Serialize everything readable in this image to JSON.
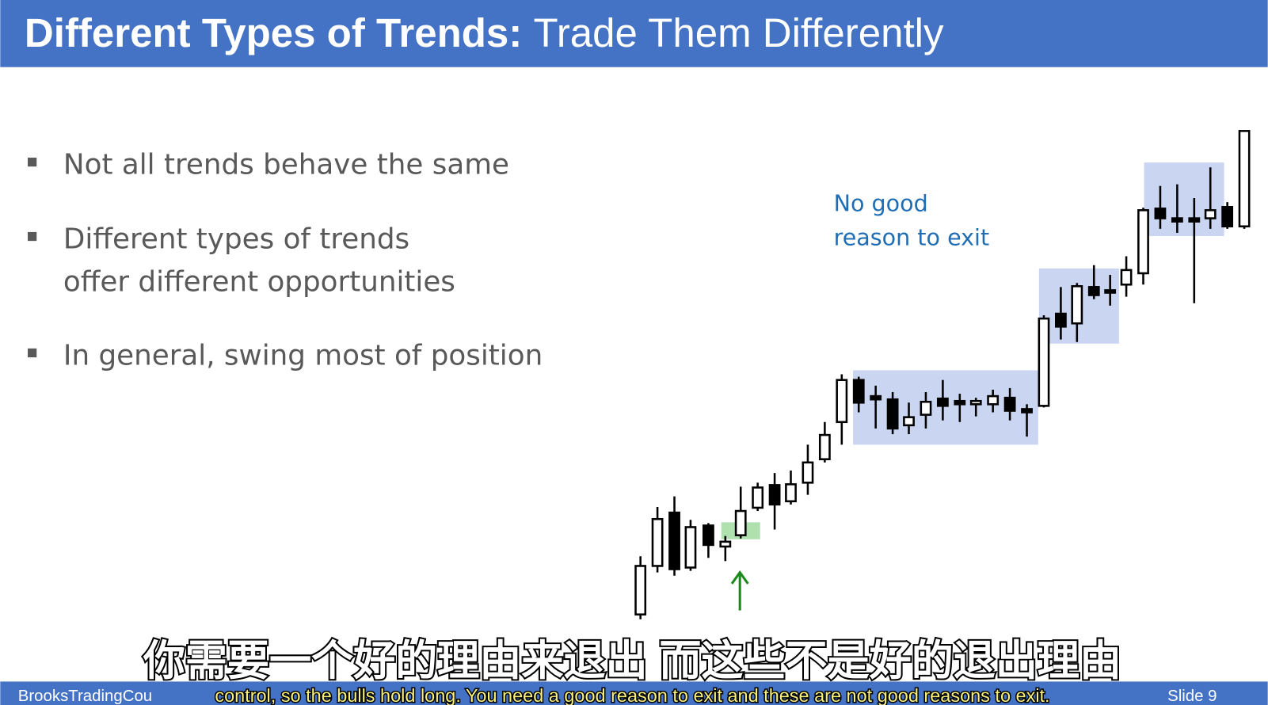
{
  "header": {
    "title_bold": "Different Types of Trends:",
    "title_rest": "Trade Them Differently"
  },
  "bullets": [
    {
      "lines": [
        "Not all trends behave the same"
      ]
    },
    {
      "lines": [
        "Different types of trends",
        "offer different opportunities"
      ]
    },
    {
      "lines": [
        "In general, swing most of position"
      ]
    }
  ],
  "annotation": {
    "lines": [
      "No good",
      "reason to exit"
    ]
  },
  "subtitles": {
    "chinese": "你需要一个好的理由来退出 而这些不是好的退出理由",
    "english": "control, so the bulls hold long. You need a good reason to exit and these are not good reasons to exit."
  },
  "footer": {
    "source": "BrooksTradingCou",
    "slide": "Slide 9"
  }
}
